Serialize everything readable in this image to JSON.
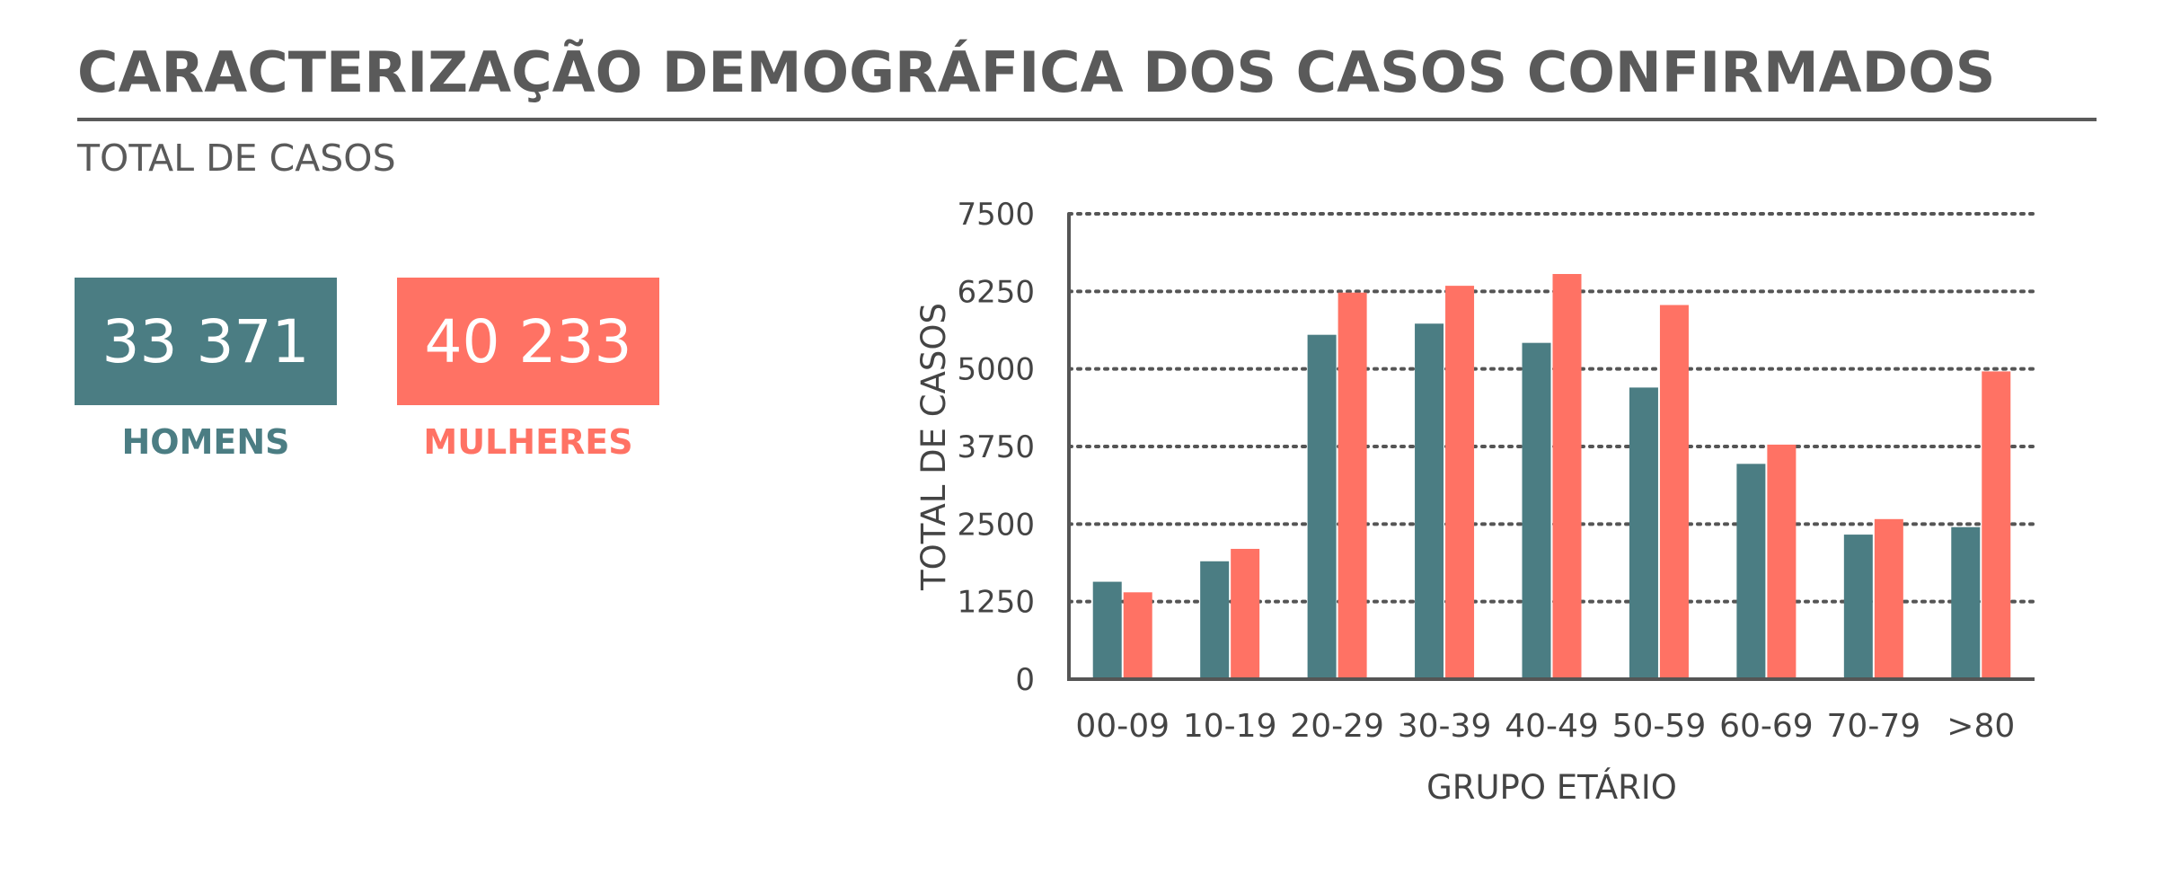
{
  "header": {
    "title": "CARACTERIZAÇÃO DEMOGRÁFICA DOS CASOS CONFIRMADOS",
    "section_label": "TOTAL DE CASOS"
  },
  "kpis": {
    "men": {
      "value": "33 371",
      "label": "HOMENS",
      "color": "#4b7d83"
    },
    "women": {
      "value": "40 233",
      "label": "MULHERES",
      "color": "#ff7264"
    }
  },
  "chart_data": {
    "type": "bar",
    "categories": [
      "00-09",
      "10-19",
      "20-29",
      "30-39",
      "40-49",
      "50-59",
      "60-69",
      "70-79",
      ">80"
    ],
    "series": [
      {
        "color": "#4b7d83",
        "values": [
          1570,
          1900,
          5550,
          5730,
          5420,
          4700,
          3470,
          2330,
          2450
        ]
      },
      {
        "color": "#ff7264",
        "values": [
          1400,
          2100,
          6230,
          6340,
          6530,
          6030,
          3780,
          2580,
          4960
        ]
      }
    ],
    "xlabel": "GRUPO ETÁRIO",
    "ylabel": "TOTAL DE CASOS",
    "ylim": [
      0,
      7500
    ],
    "yticks": [
      "0",
      "1250",
      "2500",
      "3750",
      "5000",
      "6250",
      "7500"
    ],
    "grid": true
  }
}
